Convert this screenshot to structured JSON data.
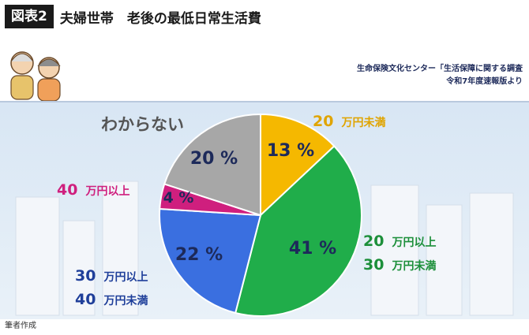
{
  "header": {
    "badge": "図表2",
    "title": "夫婦世帯　老後の最低日常生活費"
  },
  "source": {
    "line1": "生命保険文化センター「生活保障に関する調査",
    "line2": "令和7年度速報版より"
  },
  "credit": "筆者作成",
  "colors": {
    "yellow": "#f5b800",
    "green": "#20ad4a",
    "blue": "#3a6fe0",
    "magenta": "#cf1f7e",
    "gray": "#a7a7a7",
    "text_dark": "#1d2a5a"
  },
  "chart_data": {
    "type": "pie",
    "title": "",
    "slices": [
      {
        "label_lines": [
          [
            "20",
            "万円未満"
          ]
        ],
        "value": 13,
        "pct_text": "13 %",
        "color": "#f5b800",
        "label_color": "#e0a400"
      },
      {
        "label_lines": [
          [
            "20",
            "万円以上"
          ],
          [
            "30",
            "万円未満"
          ]
        ],
        "value": 41,
        "pct_text": "41 %",
        "color": "#20ad4a",
        "label_color": "#1c8f3a"
      },
      {
        "label_lines": [
          [
            "30",
            "万円以上"
          ],
          [
            "40",
            "万円未満"
          ]
        ],
        "value": 22,
        "pct_text": "22 %",
        "color": "#3a6fe0",
        "label_color": "#1f3f9a"
      },
      {
        "label_lines": [
          [
            "40",
            "万円以上"
          ]
        ],
        "value": 4,
        "pct_text": "4 %",
        "color": "#cf1f7e",
        "label_color": "#cf1f7e"
      },
      {
        "label_lines": [
          [
            "わからない",
            ""
          ]
        ],
        "value": 20,
        "pct_text": "20 %",
        "color": "#a7a7a7",
        "label_color": "#555555"
      }
    ]
  }
}
